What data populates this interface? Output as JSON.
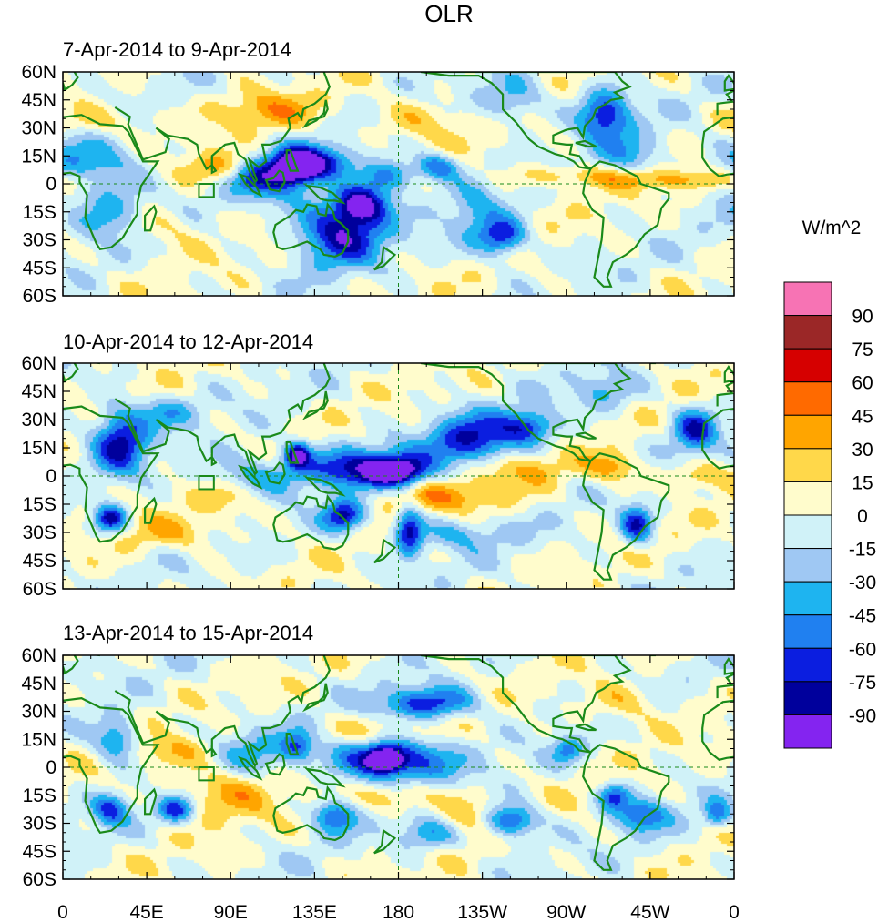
{
  "chart_data": {
    "type": "heatmap",
    "title": "OLR",
    "units": "W/m^2",
    "panels": [
      {
        "title": "7-Apr-2014 to 9-Apr-2014",
        "features": [
          {
            "lon": 125,
            "lat": 10,
            "value": -95,
            "sx": 8,
            "sy": 6
          },
          {
            "lon": 148,
            "lat": -25,
            "value": -85,
            "sx": 16,
            "sy": 12
          },
          {
            "lon": 160,
            "lat": -10,
            "value": -90,
            "sx": 10,
            "sy": 7
          },
          {
            "lon": 115,
            "lat": 5,
            "value": -55,
            "sx": 14,
            "sy": 10
          },
          {
            "lon": 140,
            "lat": 12,
            "value": -60,
            "sx": 12,
            "sy": 6
          },
          {
            "lon": 175,
            "lat": 5,
            "value": -55,
            "sx": 10,
            "sy": 6
          },
          {
            "lon": 200,
            "lat": 10,
            "value": -60,
            "sx": 8,
            "sy": 5
          },
          {
            "lon": 235,
            "lat": -28,
            "value": -75,
            "sx": 9,
            "sy": 7
          },
          {
            "lon": 290,
            "lat": 38,
            "value": -75,
            "sx": 10,
            "sy": 10
          },
          {
            "lon": 15,
            "lat": 10,
            "value": -45,
            "sx": 20,
            "sy": 10
          },
          {
            "lon": 25,
            "lat": -15,
            "value": -40,
            "sx": 14,
            "sy": 10
          },
          {
            "lon": 100,
            "lat": 5,
            "value": -35,
            "sx": 10,
            "sy": 6
          },
          {
            "lon": 240,
            "lat": 45,
            "value": -40,
            "sx": 12,
            "sy": 8
          },
          {
            "lon": 305,
            "lat": 15,
            "value": -30,
            "sx": 12,
            "sy": 8
          },
          {
            "lon": 220,
            "lat": -15,
            "value": -30,
            "sx": 10,
            "sy": 12
          },
          {
            "lon": 85,
            "lat": 10,
            "value": 40,
            "sx": 14,
            "sy": 6
          },
          {
            "lon": 330,
            "lat": 3,
            "value": 35,
            "sx": 30,
            "sy": 4
          },
          {
            "lon": 270,
            "lat": 5,
            "value": 30,
            "sx": 22,
            "sy": 4
          },
          {
            "lon": 110,
            "lat": 40,
            "value": 35,
            "sx": 18,
            "sy": 7
          },
          {
            "lon": 50,
            "lat": -22,
            "value": 25,
            "sx": 15,
            "sy": 8
          },
          {
            "lon": 190,
            "lat": 35,
            "value": 25,
            "sx": 18,
            "sy": 8
          },
          {
            "lon": 20,
            "lat": 35,
            "value": 25,
            "sx": 20,
            "sy": 6
          }
        ]
      },
      {
        "title": "10-Apr-2014 to 12-Apr-2014",
        "features": [
          {
            "lon": 30,
            "lat": 20,
            "value": -80,
            "sx": 10,
            "sy": 12
          },
          {
            "lon": 25,
            "lat": -22,
            "value": -85,
            "sx": 6,
            "sy": 5
          },
          {
            "lon": 160,
            "lat": 5,
            "value": -80,
            "sx": 22,
            "sy": 8
          },
          {
            "lon": 178,
            "lat": 3,
            "value": -75,
            "sx": 10,
            "sy": 5
          },
          {
            "lon": 125,
            "lat": 12,
            "value": -90,
            "sx": 5,
            "sy": 5
          },
          {
            "lon": 150,
            "lat": -20,
            "value": -80,
            "sx": 8,
            "sy": 6
          },
          {
            "lon": 185,
            "lat": -28,
            "value": -75,
            "sx": 5,
            "sy": 10
          },
          {
            "lon": 220,
            "lat": 20,
            "value": -70,
            "sx": 18,
            "sy": 10
          },
          {
            "lon": 250,
            "lat": 27,
            "value": -60,
            "sx": 10,
            "sy": 6
          },
          {
            "lon": 338,
            "lat": 25,
            "value": -70,
            "sx": 8,
            "sy": 8
          },
          {
            "lon": 307,
            "lat": -25,
            "value": -75,
            "sx": 6,
            "sy": 7
          },
          {
            "lon": 100,
            "lat": 0,
            "value": -45,
            "sx": 18,
            "sy": 8
          },
          {
            "lon": 55,
            "lat": 35,
            "value": -35,
            "sx": 12,
            "sy": 6
          },
          {
            "lon": 210,
            "lat": -30,
            "value": -30,
            "sx": 20,
            "sy": 6
          },
          {
            "lon": 290,
            "lat": 45,
            "value": -35,
            "sx": 12,
            "sy": 7
          },
          {
            "lon": 200,
            "lat": -10,
            "value": 35,
            "sx": 30,
            "sy": 6
          },
          {
            "lon": 295,
            "lat": 5,
            "value": 40,
            "sx": 10,
            "sy": 6
          },
          {
            "lon": 340,
            "lat": 0,
            "value": 30,
            "sx": 14,
            "sy": 5
          },
          {
            "lon": 60,
            "lat": -30,
            "value": 25,
            "sx": 20,
            "sy": 6
          },
          {
            "lon": 90,
            "lat": -10,
            "value": 25,
            "sx": 15,
            "sy": 8
          },
          {
            "lon": 245,
            "lat": 5,
            "value": 30,
            "sx": 20,
            "sy": 6
          }
        ]
      },
      {
        "title": "13-Apr-2014 to 15-Apr-2014",
        "features": [
          {
            "lon": 175,
            "lat": 5,
            "value": -90,
            "sx": 22,
            "sy": 9
          },
          {
            "lon": 172,
            "lat": 5,
            "value": -95,
            "sx": 6,
            "sy": 4
          },
          {
            "lon": 195,
            "lat": 35,
            "value": -70,
            "sx": 18,
            "sy": 6
          },
          {
            "lon": 60,
            "lat": -22,
            "value": -70,
            "sx": 7,
            "sy": 5
          },
          {
            "lon": 240,
            "lat": -28,
            "value": -75,
            "sx": 10,
            "sy": 6
          },
          {
            "lon": 28,
            "lat": 15,
            "value": -55,
            "sx": 8,
            "sy": 8
          },
          {
            "lon": 25,
            "lat": -22,
            "value": -60,
            "sx": 7,
            "sy": 6
          },
          {
            "lon": 125,
            "lat": 12,
            "value": -50,
            "sx": 6,
            "sy": 6
          },
          {
            "lon": 145,
            "lat": -25,
            "value": -60,
            "sx": 8,
            "sy": 6
          },
          {
            "lon": 195,
            "lat": -35,
            "value": -45,
            "sx": 12,
            "sy": 6
          },
          {
            "lon": 295,
            "lat": -15,
            "value": -60,
            "sx": 6,
            "sy": 5
          },
          {
            "lon": 310,
            "lat": -25,
            "value": -55,
            "sx": 10,
            "sy": 6
          },
          {
            "lon": 350,
            "lat": -25,
            "value": -50,
            "sx": 5,
            "sy": 5
          },
          {
            "lon": 270,
            "lat": 10,
            "value": -45,
            "sx": 6,
            "sy": 5
          },
          {
            "lon": 100,
            "lat": 10,
            "value": -30,
            "sx": 14,
            "sy": 10
          },
          {
            "lon": 180,
            "lat": -15,
            "value": 40,
            "sx": 14,
            "sy": 6
          },
          {
            "lon": 85,
            "lat": -12,
            "value": 35,
            "sx": 20,
            "sy": 10
          },
          {
            "lon": 215,
            "lat": -25,
            "value": 30,
            "sx": 10,
            "sy": 8
          },
          {
            "lon": 165,
            "lat": 20,
            "value": 30,
            "sx": 20,
            "sy": 6
          },
          {
            "lon": 300,
            "lat": 35,
            "value": 25,
            "sx": 15,
            "sy": 8
          },
          {
            "lon": 60,
            "lat": 10,
            "value": 25,
            "sx": 14,
            "sy": 6
          }
        ]
      }
    ],
    "lon_ticks": [
      "0",
      "45E",
      "90E",
      "135E",
      "180",
      "135W",
      "90W",
      "45W",
      "0"
    ],
    "lat_ticks": [
      "60N",
      "45N",
      "30N",
      "15N",
      "0",
      "15S",
      "30S",
      "45S",
      "60S"
    ],
    "lon_range": [
      0,
      360
    ],
    "lat_range": [
      -60,
      60
    ],
    "colorbar": {
      "labels": [
        "90",
        "75",
        "60",
        "45",
        "30",
        "15",
        "0",
        "-15",
        "-30",
        "-45",
        "-60",
        "-75",
        "-90"
      ],
      "colors": [
        "#f773b4",
        "#9b2727",
        "#d60000",
        "#ff6a00",
        "#ffa500",
        "#ffd84a",
        "#fffccc",
        "#d0f2f8",
        "#9fc8f3",
        "#1eb4f0",
        "#2080f0",
        "#0b1ee0",
        "#00009c",
        "#8424f0"
      ]
    },
    "coastline_color": "#1a8a1a"
  }
}
